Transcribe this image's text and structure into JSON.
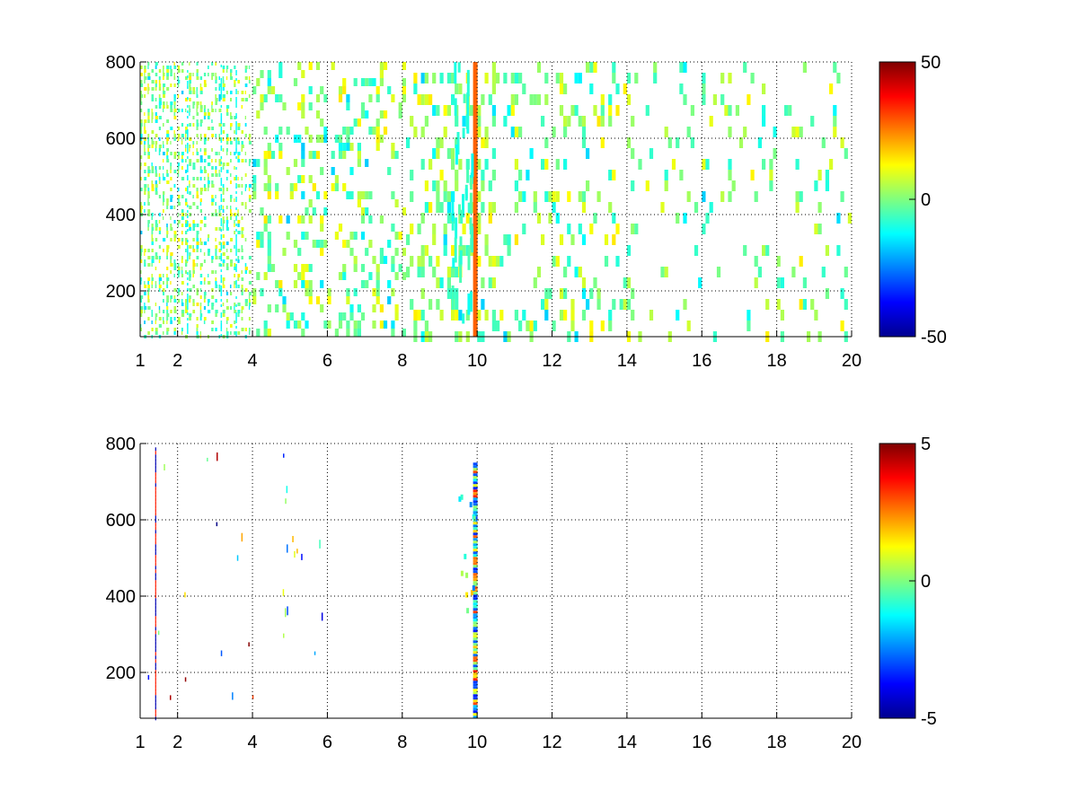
{
  "chart_data": [
    {
      "type": "heatmap",
      "title": "",
      "xlabel": "",
      "ylabel": "",
      "xlim": [
        1,
        20
      ],
      "ylim": [
        80,
        800
      ],
      "x_ticks": [
        1,
        2,
        4,
        6,
        8,
        10,
        12,
        14,
        16,
        18,
        20
      ],
      "y_ticks": [
        200,
        400,
        600,
        800
      ],
      "grid": true,
      "colormap": "jet",
      "color_range": [
        -50,
        50
      ],
      "colorbar_ticks": [
        -50,
        0,
        50
      ],
      "features": {
        "dense_columns_x_range": [
          1,
          4
        ],
        "strong_column": {
          "x": 9.95,
          "value": 28
        },
        "column_density": "dense near x=1-4 and x=8-10, sparse beyond 14"
      }
    },
    {
      "type": "heatmap",
      "title": "",
      "xlabel": "",
      "ylabel": "",
      "xlim": [
        1,
        20
      ],
      "ylim": [
        80,
        800
      ],
      "x_ticks": [
        1,
        2,
        4,
        6,
        8,
        10,
        12,
        14,
        16,
        18,
        20
      ],
      "y_ticks": [
        200,
        400,
        600,
        800
      ],
      "grid": true,
      "colormap": "jet",
      "color_range": [
        -5,
        5
      ],
      "colorbar_ticks": [
        -5,
        0,
        5
      ],
      "features": {
        "strong_column": {
          "x": 9.95,
          "y_range": [
            80,
            750
          ]
        },
        "thin_line": {
          "x": 1.4,
          "y_range": [
            80,
            790
          ]
        },
        "sparse_points_x_range": [
          1,
          6
        ]
      }
    }
  ]
}
